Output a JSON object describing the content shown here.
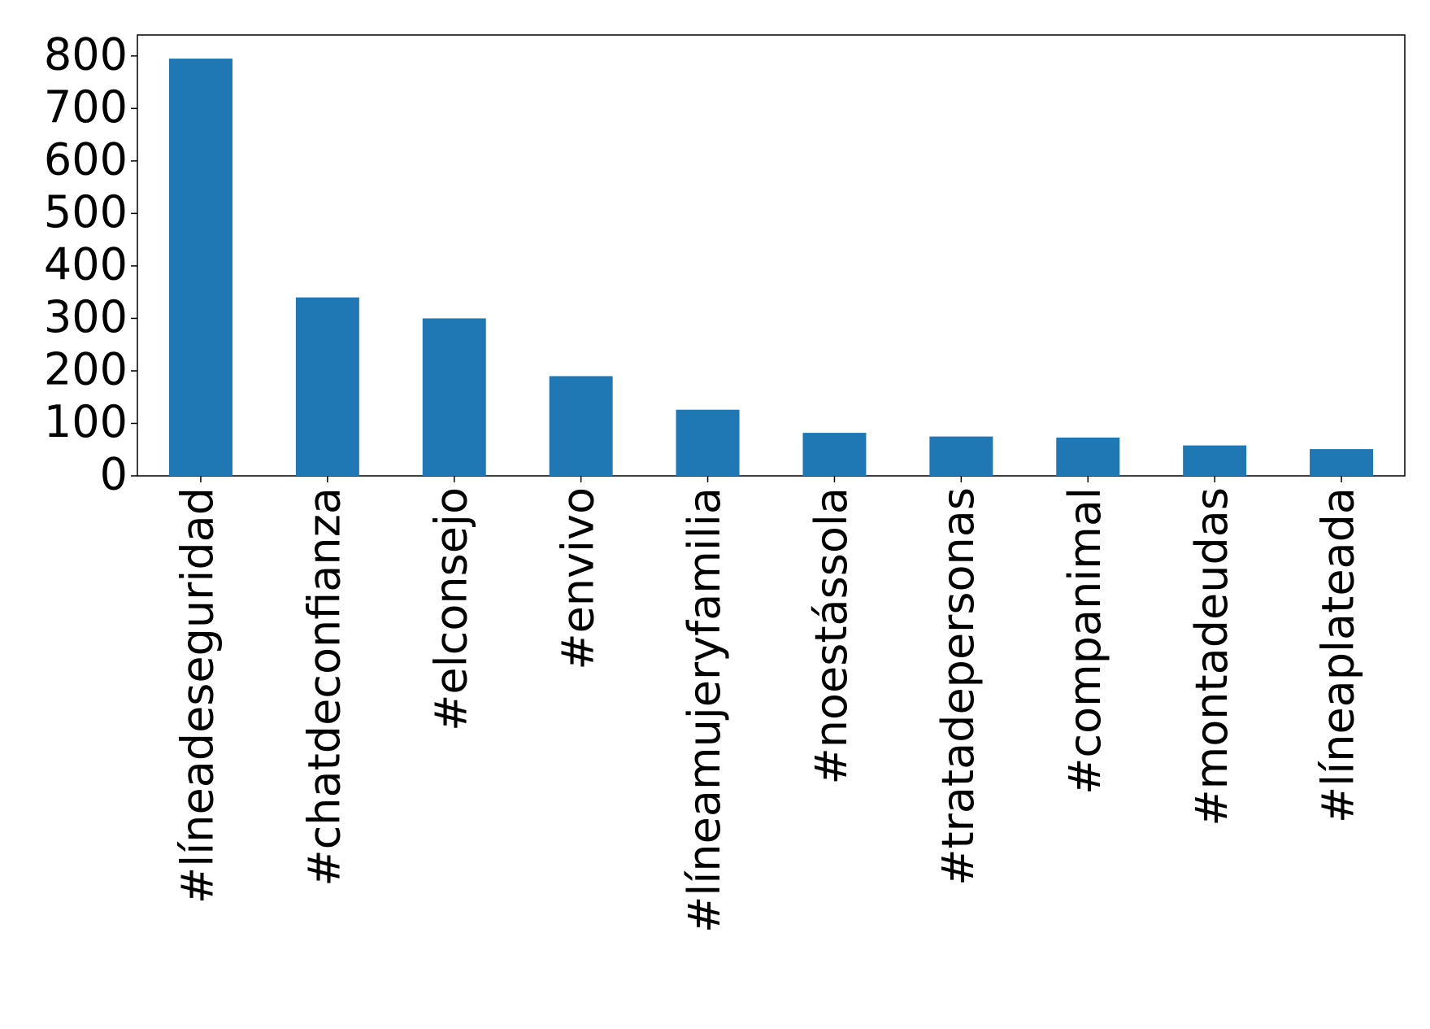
{
  "chart_data": {
    "type": "bar",
    "categories": [
      "#líneadeseguridad",
      "#chatdeconfianza",
      "#elconsejo",
      "#envivo",
      "#líneamujeryfamilia",
      "#noestássola",
      "#tratadepersonas",
      "#companimal",
      "#montadeudas",
      "#líneaplateada"
    ],
    "values": [
      795,
      340,
      300,
      190,
      126,
      82,
      75,
      73,
      58,
      51
    ],
    "color": "#1f77b4",
    "ylim": [
      0,
      840
    ],
    "yticks": [
      0,
      100,
      200,
      300,
      400,
      500,
      600,
      700,
      800
    ],
    "grid": false
  }
}
